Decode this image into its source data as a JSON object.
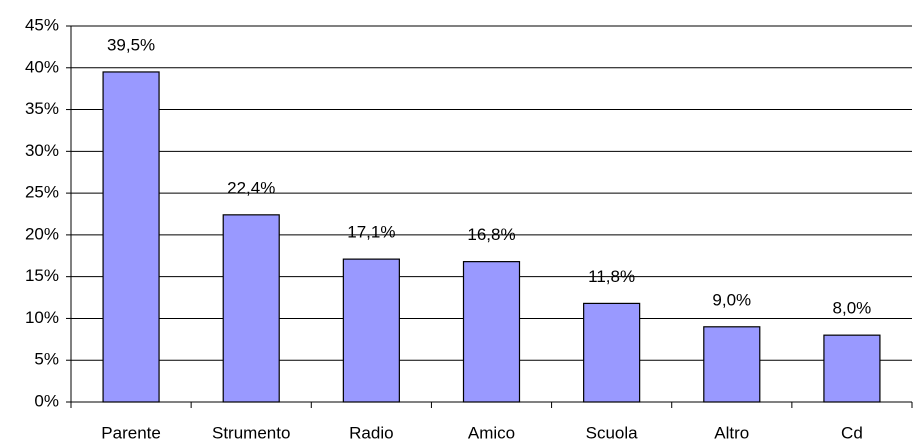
{
  "chart_data": {
    "type": "bar",
    "categories": [
      "Parente",
      "Strumento",
      "Radio",
      "Amico",
      "Scuola",
      "Altro",
      "Cd"
    ],
    "values": [
      39.5,
      22.4,
      17.1,
      16.8,
      11.8,
      9.0,
      8.0
    ],
    "value_labels": [
      "39,5%",
      "22,4%",
      "17,1%",
      "16,8%",
      "11,8%",
      "9,0%",
      "8,0%"
    ],
    "color": "#9999ff",
    "ylim": [
      0,
      45
    ],
    "yticks": [
      {
        "value": 0,
        "label": "0%"
      },
      {
        "value": 5,
        "label": "5%"
      },
      {
        "value": 10,
        "label": "10%"
      },
      {
        "value": 15,
        "label": "15%"
      },
      {
        "value": 20,
        "label": "20%"
      },
      {
        "value": 25,
        "label": "25%"
      },
      {
        "value": 30,
        "label": "30%"
      },
      {
        "value": 35,
        "label": "35%"
      },
      {
        "value": 40,
        "label": "40%"
      },
      {
        "value": 45,
        "label": "45%"
      }
    ],
    "grid": true
  }
}
